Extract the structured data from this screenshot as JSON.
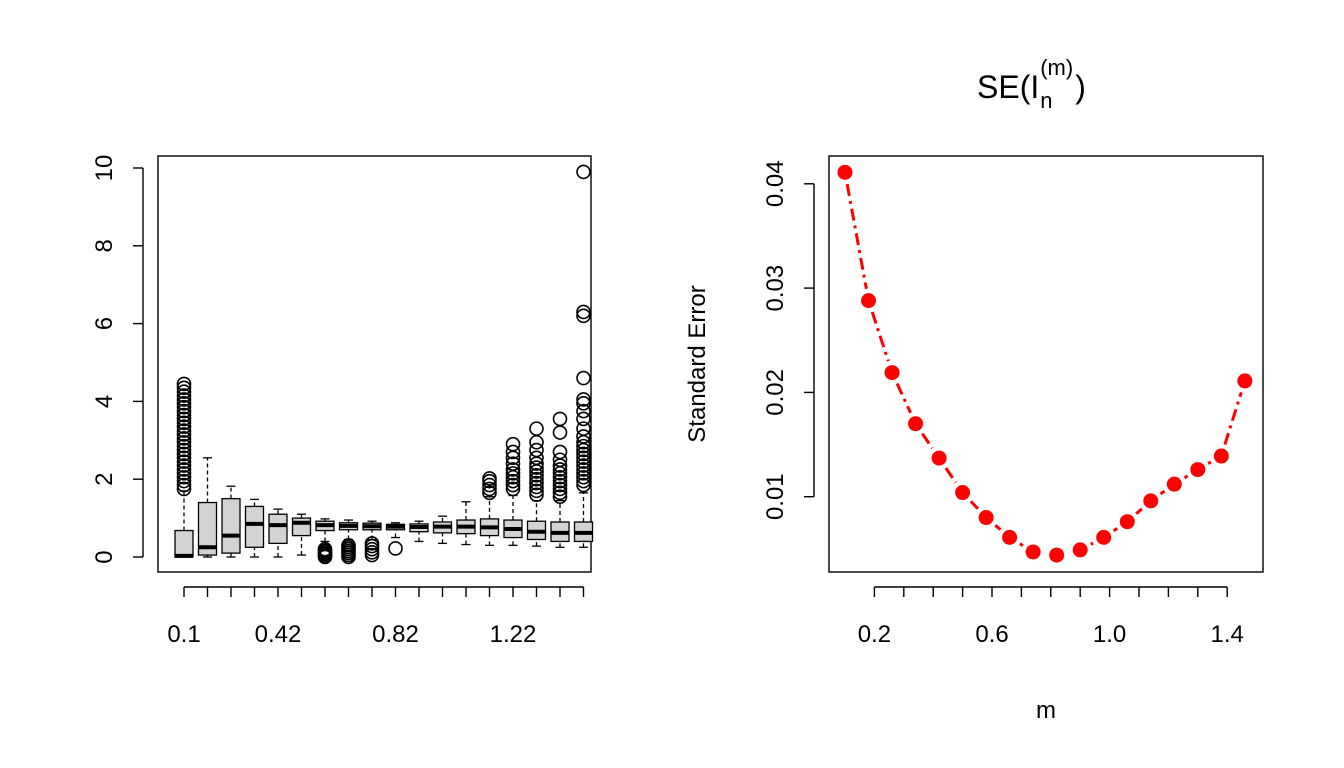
{
  "chart_data": [
    {
      "type": "box",
      "title": "",
      "xlabel": "",
      "ylabel": "",
      "ylim": [
        0,
        10
      ],
      "yticks": [
        0,
        2,
        4,
        6,
        8,
        10
      ],
      "tick_labels": [
        "0.1",
        "0.42",
        "0.82",
        "1.22"
      ],
      "fill_color": "#d3d3d3",
      "boxes": [
        {
          "x": 0.1,
          "whisker_low": 0.0,
          "q1": 0.0,
          "median": 0.03,
          "q3": 0.68,
          "whisker_high": 1.7,
          "outliers": [
            1.75,
            1.85,
            1.95,
            2.05,
            2.15,
            2.25,
            2.35,
            2.45,
            2.55,
            2.65,
            2.75,
            2.85,
            2.95,
            3.05,
            3.15,
            3.25,
            3.35,
            3.45,
            3.55,
            3.65,
            3.75,
            3.85,
            3.95,
            4.05,
            4.15,
            4.25,
            4.35,
            4.45
          ]
        },
        {
          "x": 0.18,
          "whisker_low": 0.0,
          "q1": 0.05,
          "median": 0.25,
          "q3": 1.4,
          "whisker_high": 2.55,
          "outliers": []
        },
        {
          "x": 0.26,
          "whisker_low": 0.0,
          "q1": 0.1,
          "median": 0.55,
          "q3": 1.5,
          "whisker_high": 1.82,
          "outliers": []
        },
        {
          "x": 0.34,
          "whisker_low": 0.0,
          "q1": 0.25,
          "median": 0.85,
          "q3": 1.3,
          "whisker_high": 1.48,
          "outliers": []
        },
        {
          "x": 0.42,
          "whisker_low": 0.0,
          "q1": 0.35,
          "median": 0.82,
          "q3": 1.1,
          "whisker_high": 1.23,
          "outliers": []
        },
        {
          "x": 0.5,
          "whisker_low": 0.05,
          "q1": 0.55,
          "median": 0.88,
          "q3": 1.0,
          "whisker_high": 1.1,
          "outliers": []
        },
        {
          "x": 0.58,
          "whisker_low": 0.4,
          "q1": 0.68,
          "median": 0.82,
          "q3": 0.92,
          "whisker_high": 0.98,
          "outliers": [
            0.0,
            0.04,
            0.08,
            0.12,
            0.16,
            0.2
          ]
        },
        {
          "x": 0.66,
          "whisker_low": 0.45,
          "q1": 0.7,
          "median": 0.8,
          "q3": 0.88,
          "whisker_high": 0.95,
          "outliers": [
            0.0,
            0.05,
            0.1,
            0.15,
            0.2,
            0.25,
            0.3
          ]
        },
        {
          "x": 0.74,
          "whisker_low": 0.45,
          "q1": 0.7,
          "median": 0.79,
          "q3": 0.87,
          "whisker_high": 0.92,
          "outliers": [
            0.05,
            0.12,
            0.2,
            0.28,
            0.35
          ]
        },
        {
          "x": 0.82,
          "whisker_low": 0.5,
          "q1": 0.7,
          "median": 0.78,
          "q3": 0.84,
          "whisker_high": 0.88,
          "outliers": [
            0.22
          ]
        },
        {
          "x": 0.9,
          "whisker_low": 0.4,
          "q1": 0.65,
          "median": 0.77,
          "q3": 0.85,
          "whisker_high": 0.92,
          "outliers": []
        },
        {
          "x": 0.98,
          "whisker_low": 0.35,
          "q1": 0.62,
          "median": 0.78,
          "q3": 0.9,
          "whisker_high": 1.05,
          "outliers": []
        },
        {
          "x": 1.06,
          "whisker_low": 0.32,
          "q1": 0.6,
          "median": 0.78,
          "q3": 0.95,
          "whisker_high": 1.42,
          "outliers": []
        },
        {
          "x": 1.14,
          "whisker_low": 0.3,
          "q1": 0.55,
          "median": 0.76,
          "q3": 0.98,
          "whisker_high": 1.55,
          "outliers": [
            1.65,
            1.75,
            1.85,
            1.95,
            2.02
          ]
        },
        {
          "x": 1.22,
          "whisker_low": 0.3,
          "q1": 0.5,
          "median": 0.72,
          "q3": 0.95,
          "whisker_high": 1.58,
          "outliers": [
            1.75,
            1.85,
            1.95,
            2.05,
            2.15,
            2.25,
            2.4,
            2.55,
            2.7,
            2.9
          ]
        },
        {
          "x": 1.3,
          "whisker_low": 0.28,
          "q1": 0.45,
          "median": 0.65,
          "q3": 0.92,
          "whisker_high": 1.45,
          "outliers": [
            1.6,
            1.7,
            1.8,
            1.9,
            2.0,
            2.1,
            2.2,
            2.3,
            2.4,
            2.55,
            2.75,
            2.95,
            3.3
          ]
        },
        {
          "x": 1.38,
          "whisker_low": 0.25,
          "q1": 0.4,
          "median": 0.62,
          "q3": 0.9,
          "whisker_high": 1.45,
          "outliers": [
            1.55,
            1.65,
            1.75,
            1.85,
            1.95,
            2.05,
            2.15,
            2.25,
            2.35,
            2.5,
            2.7,
            3.2,
            3.55
          ]
        },
        {
          "x": 1.46,
          "whisker_low": 0.25,
          "q1": 0.4,
          "median": 0.62,
          "q3": 0.9,
          "whisker_high": 1.65,
          "outliers": [
            1.85,
            1.95,
            2.05,
            2.15,
            2.25,
            2.35,
            2.45,
            2.55,
            2.65,
            2.75,
            2.85,
            2.95,
            3.1,
            3.3,
            3.55,
            3.75,
            3.95,
            4.05,
            4.6,
            6.2,
            6.3,
            9.9
          ]
        }
      ]
    },
    {
      "type": "line",
      "title": "SE(I_n^(m))",
      "title_parts": {
        "base": "SE(I",
        "subscript": "n",
        "superscript": "(m)",
        "close": ")"
      },
      "xlabel": "m",
      "ylabel": "Standard Error",
      "xticks": [
        "0.2",
        "0.6",
        "1.0",
        "1.4"
      ],
      "yticks": [
        "0.01",
        "0.02",
        "0.03",
        "0.04"
      ],
      "line_style": "dash-dot",
      "color": "#ff0000",
      "x": [
        0.1,
        0.18,
        0.26,
        0.34,
        0.42,
        0.5,
        0.58,
        0.66,
        0.74,
        0.82,
        0.9,
        0.98,
        1.06,
        1.14,
        1.22,
        1.3,
        1.38,
        1.46
      ],
      "y": [
        0.0411,
        0.0288,
        0.0219,
        0.017,
        0.0137,
        0.0104,
        0.008,
        0.0061,
        0.0047,
        0.0044,
        0.0049,
        0.0061,
        0.0076,
        0.0096,
        0.0112,
        0.0126,
        0.0139,
        0.0211
      ]
    }
  ]
}
